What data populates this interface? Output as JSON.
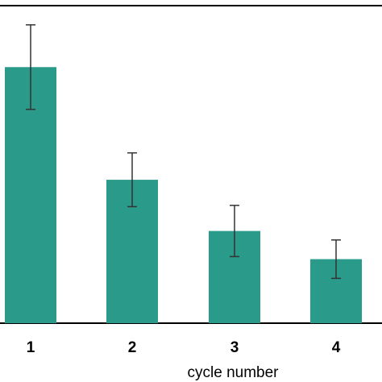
{
  "chart_data": {
    "type": "bar",
    "categories": [
      "1",
      "2",
      "3",
      "4"
    ],
    "values": [
      100,
      56,
      36,
      25
    ],
    "error": [
      16.5,
      10.5,
      10,
      7.5
    ],
    "xlabel": "cycle number",
    "ylabel": "",
    "ylim": [
      0,
      124
    ],
    "grid": false,
    "legend": "none",
    "colors": {
      "bar": "#2a9a8a",
      "error_bar": "#333333",
      "axis": "#000000",
      "text": "#000000"
    }
  }
}
